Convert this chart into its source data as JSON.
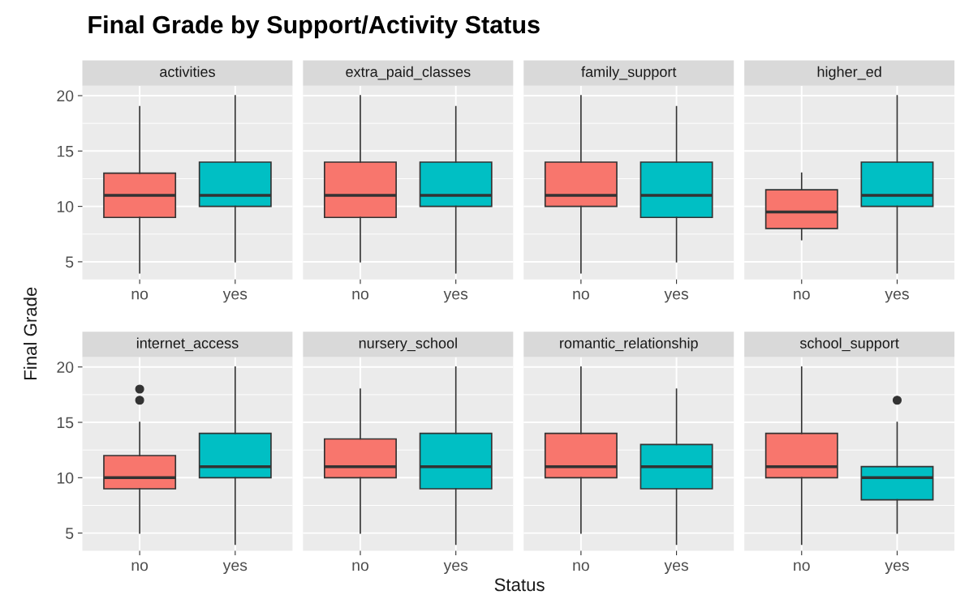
{
  "chart_data": [
    {
      "type": "box",
      "title": "activities",
      "annotations": [
        "Final Grade by Support/Activity Status"
      ],
      "categories": [
        "no",
        "yes"
      ],
      "colors": [
        "#f8766d",
        "#00bfc4"
      ],
      "ylim": [
        3.4,
        20.9
      ],
      "yticks": [
        5,
        10,
        15,
        20
      ],
      "grid": true,
      "boxes": [
        {
          "low": 4,
          "q1": 9,
          "median": 11,
          "q3": 13,
          "high": 19
        },
        {
          "low": 5,
          "q1": 10,
          "median": 11,
          "q3": 14,
          "high": 20
        }
      ]
    },
    {
      "type": "box",
      "title": "extra_paid_classes",
      "categories": [
        "no",
        "yes"
      ],
      "colors": [
        "#f8766d",
        "#00bfc4"
      ],
      "ylim": [
        3.4,
        20.9
      ],
      "yticks": [
        5,
        10,
        15,
        20
      ],
      "grid": true,
      "tick_labels": "x",
      "boxes": [
        {
          "low": 5,
          "q1": 9,
          "median": 11,
          "q3": 14,
          "high": 20
        },
        {
          "low": 4,
          "q1": 10,
          "median": 11,
          "q3": 14,
          "high": 19
        }
      ]
    },
    {
      "type": "box",
      "title": "family_support",
      "categories": [
        "no",
        "yes"
      ],
      "colors": [
        "#f8766d",
        "#00bfc4"
      ],
      "ylim": [
        3.4,
        20.9
      ],
      "yticks": [
        5,
        10,
        15,
        20
      ],
      "grid": true,
      "tick_labels": "x",
      "boxes": [
        {
          "low": 4,
          "q1": 10,
          "median": 11,
          "q3": 14,
          "high": 20
        },
        {
          "low": 5,
          "q1": 9,
          "median": 11,
          "q3": 14,
          "high": 19
        }
      ]
    },
    {
      "type": "box",
      "title": "higher_ed",
      "categories": [
        "no",
        "yes"
      ],
      "colors": [
        "#f8766d",
        "#00bfc4"
      ],
      "ylim": [
        3.4,
        20.9
      ],
      "yticks": [
        5,
        10,
        15,
        20
      ],
      "grid": true,
      "tick_labels": "x",
      "boxes": [
        {
          "low": 7,
          "q1": 8,
          "median": 9.5,
          "q3": 11.5,
          "high": 13
        },
        {
          "low": 4,
          "q1": 10,
          "median": 11,
          "q3": 14,
          "high": 20
        }
      ]
    },
    {
      "type": "box",
      "title": "internet_access",
      "ylabel": "Final Grade",
      "categories": [
        "no",
        "yes"
      ],
      "colors": [
        "#f8766d",
        "#00bfc4"
      ],
      "ylim": [
        3.4,
        20.9
      ],
      "yticks": [
        5,
        10,
        15,
        20
      ],
      "grid": true,
      "boxes": [
        {
          "low": 5,
          "q1": 9,
          "median": 10,
          "q3": 12,
          "high": 15,
          "outliers": [
            17,
            18
          ]
        },
        {
          "low": 4,
          "q1": 10,
          "median": 11,
          "q3": 14,
          "high": 20
        }
      ]
    },
    {
      "type": "box",
      "title": "nursery_school",
      "xlabel": "Status",
      "categories": [
        "no",
        "yes"
      ],
      "colors": [
        "#f8766d",
        "#00bfc4"
      ],
      "ylim": [
        3.4,
        20.9
      ],
      "yticks": [
        5,
        10,
        15,
        20
      ],
      "grid": true,
      "tick_labels": "x",
      "boxes": [
        {
          "low": 5,
          "q1": 10,
          "median": 11,
          "q3": 13.5,
          "high": 18
        },
        {
          "low": 4,
          "q1": 9,
          "median": 11,
          "q3": 14,
          "high": 20
        }
      ]
    },
    {
      "type": "box",
      "title": "romantic_relationship",
      "categories": [
        "no",
        "yes"
      ],
      "colors": [
        "#f8766d",
        "#00bfc4"
      ],
      "ylim": [
        3.4,
        20.9
      ],
      "yticks": [
        5,
        10,
        15,
        20
      ],
      "grid": true,
      "tick_labels": "x",
      "boxes": [
        {
          "low": 5,
          "q1": 10,
          "median": 11,
          "q3": 14,
          "high": 20
        },
        {
          "low": 4,
          "q1": 9,
          "median": 11,
          "q3": 13,
          "high": 18
        }
      ]
    },
    {
      "type": "box",
      "title": "school_support",
      "categories": [
        "no",
        "yes"
      ],
      "colors": [
        "#f8766d",
        "#00bfc4"
      ],
      "ylim": [
        3.4,
        20.9
      ],
      "yticks": [
        5,
        10,
        15,
        20
      ],
      "grid": true,
      "tick_labels": "x",
      "boxes": [
        {
          "low": 4,
          "q1": 10,
          "median": 11,
          "q3": 14,
          "high": 20
        },
        {
          "low": 5,
          "q1": 8,
          "median": 10,
          "q3": 11,
          "high": 15,
          "outliers": [
            17
          ]
        }
      ]
    }
  ]
}
